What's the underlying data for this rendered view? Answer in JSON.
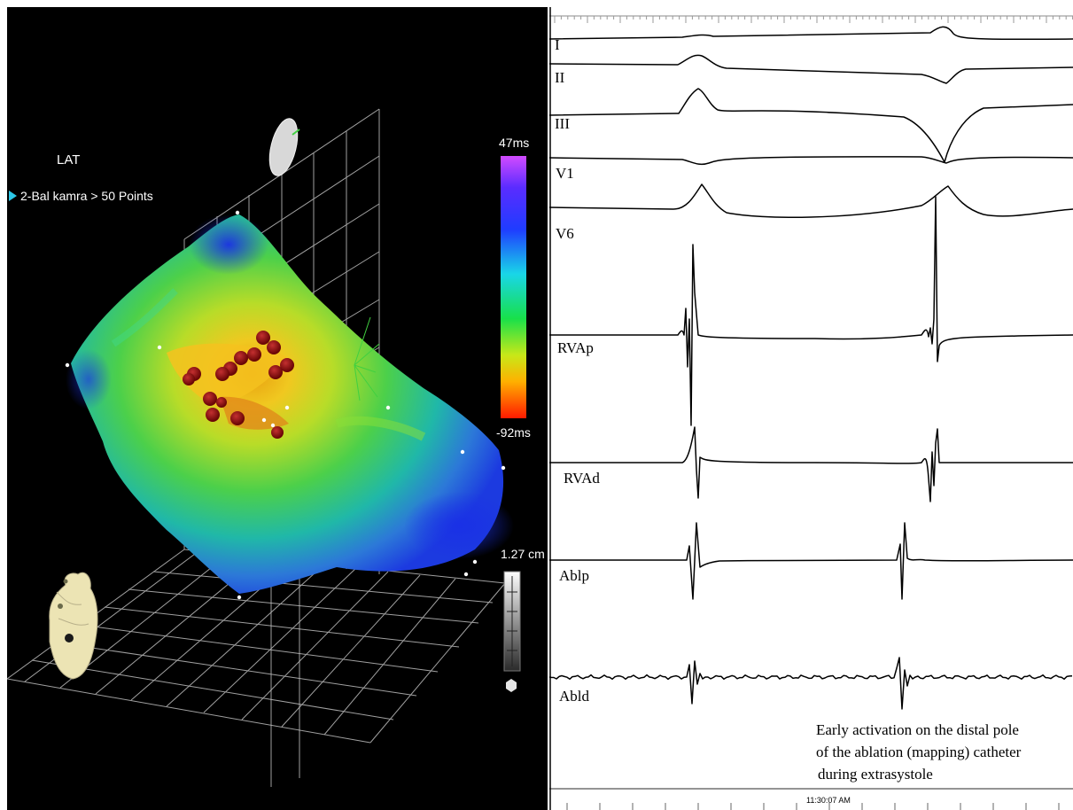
{
  "map": {
    "measure_label": "LAT",
    "layer_label": "2-Bal kamra > 50 Points",
    "scale_max": "47ms",
    "scale_min": "-92ms",
    "distance_label": "1.27 cm",
    "icons": [
      "orientation-ellipse-icon",
      "heart-model-icon",
      "layer-pointer-icon",
      "distance-ruler-icon"
    ],
    "colors": {
      "background": "#000000",
      "ablation_point": "#8b1010",
      "grid": "#bdbdbd"
    }
  },
  "ecg": {
    "leads": [
      "I",
      "II",
      "III",
      "V1",
      "V6",
      "RVAp",
      "RVAd",
      "Ablp",
      "Abld"
    ],
    "annotation": [
      "Early activation on the distal pole",
      "of the ablation (mapping) catheter",
      "during extrasystole"
    ],
    "timestamp": "11:30:07 AM"
  }
}
